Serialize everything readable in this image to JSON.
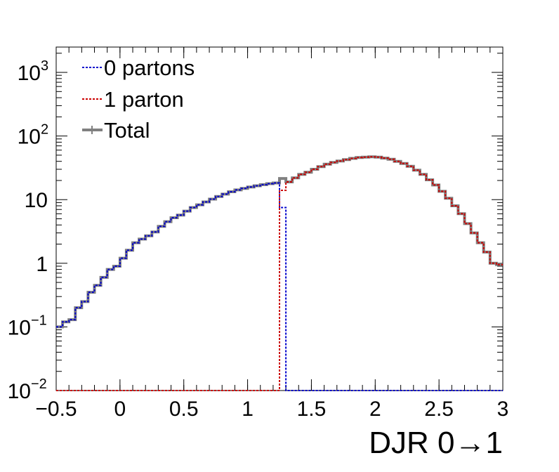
{
  "chart_data": {
    "type": "line",
    "xlabel": "DJR 0→1",
    "ylabel": "",
    "title": "",
    "xlim": [
      -0.5,
      3.0
    ],
    "ylim": [
      0.01,
      2500
    ],
    "yscale": "log",
    "grid": false,
    "legend_position": "top-left",
    "x_ticks": [
      {
        "value": -0.5,
        "label": "−0.5"
      },
      {
        "value": 0,
        "label": "0"
      },
      {
        "value": 0.5,
        "label": "0.5"
      },
      {
        "value": 1,
        "label": "1"
      },
      {
        "value": 1.5,
        "label": "1.5"
      },
      {
        "value": 2,
        "label": "2"
      },
      {
        "value": 2.5,
        "label": "2.5"
      },
      {
        "value": 3,
        "label": "3"
      }
    ],
    "y_ticks": [
      {
        "value": 0.01,
        "base": "10",
        "exp": "−2"
      },
      {
        "value": 0.1,
        "base": "10",
        "exp": "−1"
      },
      {
        "value": 1,
        "base": "1",
        "exp": ""
      },
      {
        "value": 10,
        "base": "10",
        "exp": ""
      },
      {
        "value": 100,
        "base": "10",
        "exp": "2"
      },
      {
        "value": 1000,
        "base": "10",
        "exp": "3"
      }
    ],
    "bin_edges": [
      -0.5,
      -0.45,
      -0.4,
      -0.35,
      -0.3,
      -0.25,
      -0.2,
      -0.15,
      -0.1,
      -0.05,
      0.0,
      0.05,
      0.1,
      0.15,
      0.2,
      0.25,
      0.3,
      0.35,
      0.4,
      0.45,
      0.5,
      0.55,
      0.6,
      0.65,
      0.7,
      0.75,
      0.8,
      0.85,
      0.9,
      0.95,
      1.0,
      1.05,
      1.1,
      1.15,
      1.2,
      1.25,
      1.3,
      1.35,
      1.4,
      1.45,
      1.5,
      1.55,
      1.6,
      1.65,
      1.7,
      1.75,
      1.8,
      1.85,
      1.9,
      1.95,
      2.0,
      2.05,
      2.1,
      2.15,
      2.2,
      2.25,
      2.3,
      2.35,
      2.4,
      2.45,
      2.5,
      2.55,
      2.6,
      2.65,
      2.7,
      2.75,
      2.8,
      2.85,
      2.9,
      2.95,
      3.0
    ],
    "series": [
      {
        "name": "0 partons",
        "color": "#0000cc",
        "style": "dotted",
        "values": [
          0.1,
          0.12,
          0.13,
          0.2,
          0.25,
          0.35,
          0.45,
          0.6,
          0.8,
          0.9,
          1.2,
          1.6,
          2.1,
          2.4,
          2.7,
          3.1,
          3.8,
          4.5,
          5.2,
          5.7,
          6.6,
          7.5,
          8.3,
          9.2,
          10.2,
          11.2,
          12.2,
          13.3,
          14.2,
          15.0,
          15.8,
          16.5,
          17.2,
          17.8,
          18.3,
          7.5,
          0.01,
          0.01,
          0.01,
          0.01,
          0.01,
          0.01,
          0.01,
          0.01,
          0.01,
          0.01,
          0.01,
          0.01,
          0.01,
          0.01,
          0.01,
          0.01,
          0.01,
          0.01,
          0.01,
          0.01,
          0.01,
          0.01,
          0.01,
          0.01,
          0.01,
          0.01,
          0.01,
          0.01,
          0.01,
          0.01,
          0.01,
          0.01,
          0.01,
          0.01
        ]
      },
      {
        "name": "1 parton",
        "color": "#cc0000",
        "style": "dotted",
        "values": [
          0.01,
          0.01,
          0.01,
          0.01,
          0.01,
          0.01,
          0.01,
          0.01,
          0.01,
          0.01,
          0.01,
          0.01,
          0.01,
          0.01,
          0.01,
          0.01,
          0.01,
          0.01,
          0.01,
          0.01,
          0.01,
          0.01,
          0.01,
          0.01,
          0.01,
          0.01,
          0.01,
          0.01,
          0.01,
          0.01,
          0.01,
          0.01,
          0.01,
          0.01,
          0.01,
          14,
          19,
          22,
          25,
          27,
          30,
          33,
          36,
          38.5,
          40.5,
          42.5,
          44.5,
          46,
          46.5,
          47,
          46.5,
          45,
          43,
          40,
          37,
          33.5,
          29,
          25,
          20.5,
          17,
          13.5,
          10.5,
          8,
          6,
          4.2,
          3,
          2.1,
          1.5,
          1.0,
          0.95
        ]
      },
      {
        "name": "Total",
        "color": "#808080",
        "style": "solid",
        "values": [
          0.1,
          0.12,
          0.13,
          0.2,
          0.25,
          0.35,
          0.45,
          0.6,
          0.8,
          0.9,
          1.2,
          1.6,
          2.1,
          2.4,
          2.7,
          3.1,
          3.8,
          4.5,
          5.2,
          5.7,
          6.6,
          7.5,
          8.3,
          9.2,
          10.2,
          11.2,
          12.2,
          13.3,
          14.2,
          15.0,
          15.8,
          16.5,
          17.2,
          17.8,
          18.3,
          21.5,
          19,
          22,
          25,
          27,
          30,
          33,
          36,
          38.5,
          40.5,
          42.5,
          44.5,
          46,
          46.5,
          47,
          46.5,
          45,
          43,
          40,
          37,
          33.5,
          29,
          25,
          20.5,
          17,
          13.5,
          10.5,
          8,
          6,
          4.2,
          3,
          2.1,
          1.5,
          1.0,
          0.95
        ]
      }
    ]
  }
}
